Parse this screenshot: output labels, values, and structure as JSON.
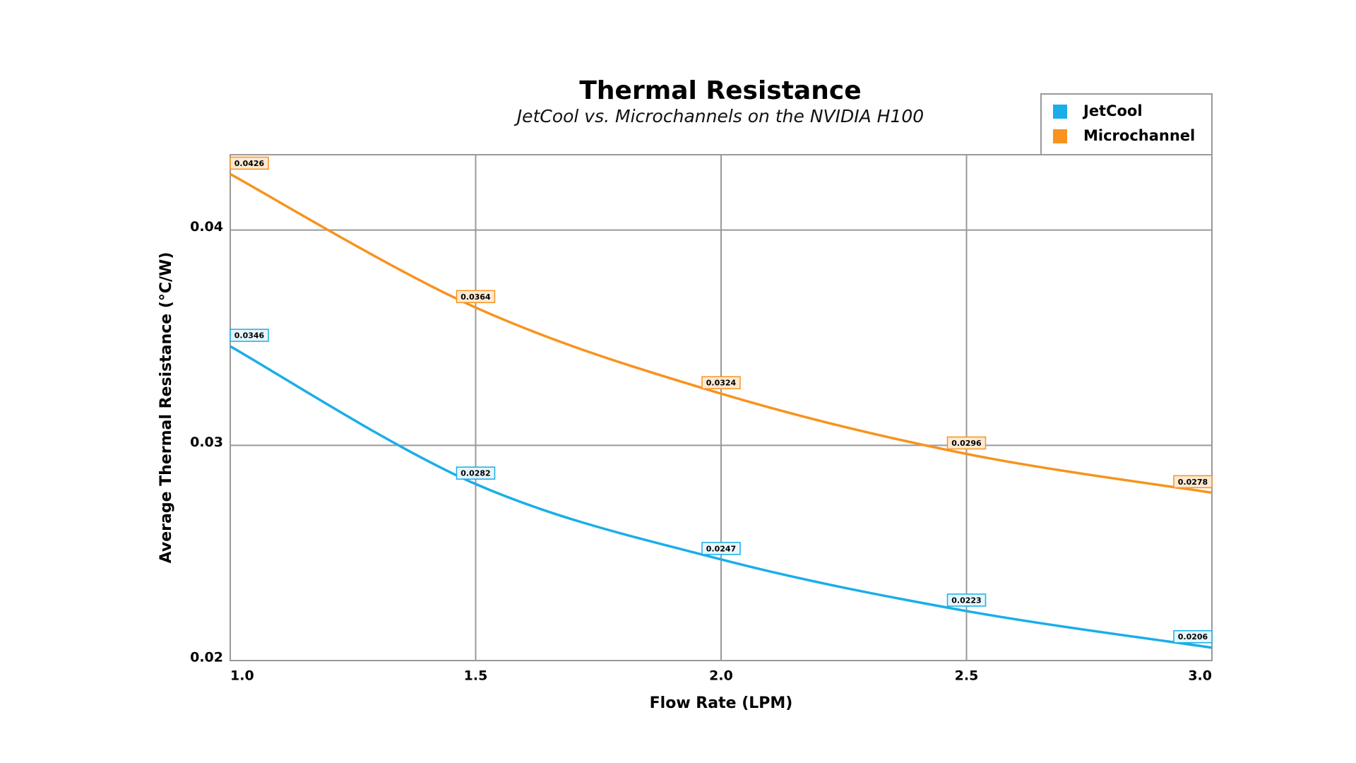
{
  "chart_data": {
    "type": "line",
    "title": "Thermal Resistance",
    "subtitle": "JetCool vs. Microchannels on the NVIDIA H100",
    "x_label": "Flow Rate (LPM)",
    "y_label": "Average Thermal Resistance (°C/W)",
    "x": [
      1.0,
      1.5,
      2.0,
      2.5,
      3.0
    ],
    "series": [
      {
        "name": "JetCool",
        "color": "#1aaee8",
        "values": [
          0.0346,
          0.0282,
          0.0247,
          0.0223,
          0.0206
        ]
      },
      {
        "name": "Microchannel",
        "color": "#f7931e",
        "values": [
          0.0426,
          0.0364,
          0.0324,
          0.0296,
          0.0278
        ]
      }
    ],
    "xlim": [
      1,
      3
    ],
    "xticks": [
      {
        "value": 1,
        "label": "1.0"
      },
      1.5,
      {
        "value": 2,
        "label": "2.0"
      },
      2.5,
      {
        "value": 3,
        "label": "3.0"
      }
    ],
    "ylim": [
      0.02,
      0.0435
    ],
    "yticks": [
      0.02,
      0.03,
      0.04
    ],
    "grid": true,
    "legend": "top-right"
  }
}
